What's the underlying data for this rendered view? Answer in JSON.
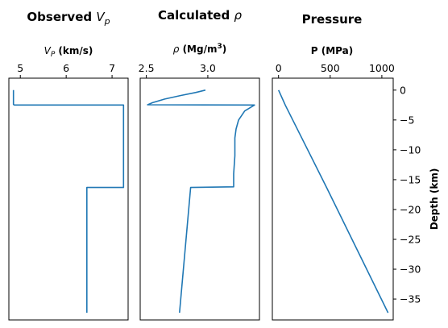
{
  "figure": {
    "line_color": "#1f77b4",
    "panels": [
      {
        "id": "vp",
        "title": "Observed ",
        "title_math": "V",
        "title_sub": "p",
        "xlabel_math": "V",
        "xlabel_sub": "P",
        "xlabel": " (km/s)",
        "xticks": [
          5,
          6,
          7
        ],
        "xtick_labels": [
          "5",
          "6",
          "7"
        ],
        "xlim": [
          4.75,
          7.35
        ],
        "ylim": [
          -38.5,
          2.0
        ],
        "series": {
          "x": [
            4.85,
            4.85,
            4.87,
            7.25,
            7.25,
            6.45,
            6.45
          ],
          "y": [
            0,
            -2.4,
            -2.5,
            -2.5,
            -16.3,
            -16.3,
            -37.3
          ]
        }
      },
      {
        "id": "rho",
        "title": "Calculated ",
        "title_math": "ρ",
        "title_sub": "",
        "xlabel_math": "ρ",
        "xlabel_sub": "",
        "xlabel": " (Mg/m",
        "xlabel_sup": "3",
        "xlabel_end": ")",
        "xticks": [
          2.5,
          3.0
        ],
        "xtick_labels": [
          "2.5",
          "3.0"
        ],
        "xlim": [
          2.45,
          3.42
        ],
        "ylim": [
          -38.5,
          2.0
        ],
        "series": {
          "x": [
            2.98,
            2.9,
            2.78,
            2.65,
            2.55,
            2.51,
            3.38,
            3.3,
            3.25,
            3.23,
            3.22,
            3.22,
            3.21,
            3.21,
            2.86,
            2.77
          ],
          "y": [
            0,
            -0.4,
            -0.9,
            -1.5,
            -2.1,
            -2.45,
            -2.5,
            -3.5,
            -5.0,
            -6.5,
            -8.0,
            -11.0,
            -14.0,
            -16.2,
            -16.3,
            -37.3
          ]
        }
      },
      {
        "id": "pressure",
        "title": "Pressure",
        "title_math": "",
        "title_sub": "",
        "xlabel_math": "",
        "xlabel_sub": "",
        "xlabel": "P (MPa)",
        "xticks": [
          0,
          500,
          1000
        ],
        "xtick_labels": [
          "0",
          "500",
          "1000"
        ],
        "xlim": [
          -60,
          1110
        ],
        "ylim": [
          -38.5,
          2.0
        ],
        "yticks": [
          0,
          -5,
          -10,
          -15,
          -20,
          -25,
          -30,
          -35
        ],
        "ytick_labels": [
          "0",
          "−5",
          "−10",
          "−15",
          "−20",
          "−25",
          "−30",
          "−35"
        ],
        "ylabel": "Depth (km)",
        "series": {
          "x": [
            0,
            65,
            465,
            1060
          ],
          "y": [
            0,
            -2.5,
            -16.3,
            -37.3
          ]
        }
      }
    ]
  }
}
